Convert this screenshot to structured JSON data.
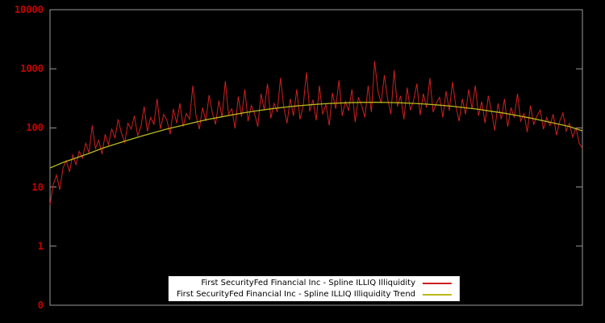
{
  "chart_data": {
    "type": "line",
    "title": "",
    "yscale": "log",
    "ylim": [
      0.1,
      10000
    ],
    "ytick_labels": [
      "10000",
      "1000",
      "100",
      "10",
      "1",
      "0"
    ],
    "xtick_labels": [],
    "grid": false,
    "legend_position": "bottom-center",
    "background": "#000000",
    "axis_label_color": "#cc0000",
    "border_color": "#9a9a9a",
    "series": [
      {
        "name": "First SecurityFed Financial Inc - Spline ILLIQ Illiquidity",
        "color": "#cf2020",
        "values": [
          5,
          11,
          16,
          9,
          21,
          28,
          18,
          35,
          24,
          40,
          31,
          55,
          38,
          110,
          45,
          62,
          36,
          78,
          52,
          95,
          68,
          140,
          82,
          57,
          120,
          95,
          160,
          74,
          105,
          230,
          88,
          150,
          115,
          310,
          96,
          170,
          135,
          78,
          210,
          120,
          260,
          105,
          175,
          140,
          520,
          160,
          95,
          220,
          130,
          360,
          180,
          115,
          290,
          150,
          620,
          170,
          210,
          98,
          340,
          155,
          450,
          130,
          240,
          175,
          105,
          380,
          200,
          560,
          145,
          260,
          185,
          700,
          220,
          120,
          310,
          160,
          450,
          140,
          240,
          870,
          190,
          300,
          135,
          520,
          170,
          250,
          110,
          390,
          210,
          640,
          160,
          280,
          195,
          450,
          125,
          330,
          240,
          150,
          520,
          185,
          1350,
          420,
          260,
          780,
          310,
          170,
          950,
          230,
          350,
          140,
          480,
          200,
          290,
          560,
          165,
          380,
          220,
          700,
          185,
          260,
          330,
          150,
          420,
          195,
          600,
          240,
          130,
          310,
          170,
          450,
          210,
          520,
          160,
          280,
          120,
          350,
          190,
          90,
          260,
          140,
          310,
          105,
          220,
          150,
          380,
          130,
          175,
          85,
          240,
          115,
          160,
          200,
          95,
          150,
          110,
          170,
          75,
          130,
          180,
          88,
          120,
          70,
          100,
          55,
          45
        ]
      },
      {
        "name": "First SecurityFed Financial Inc - Spline ILLIQ Illiquidity Trend",
        "color": "#b9b919",
        "values": [
          21,
          26,
          31,
          37,
          45,
          53,
          62,
          72,
          83,
          96,
          108,
          122,
          137,
          151,
          166,
          181,
          196,
          210,
          223,
          235,
          246,
          255,
          262,
          267,
          270,
          271,
          269,
          266,
          260,
          252,
          243,
          232,
          219,
          206,
          191,
          177,
          162,
          147,
          132,
          118,
          105,
          89
        ]
      }
    ]
  }
}
